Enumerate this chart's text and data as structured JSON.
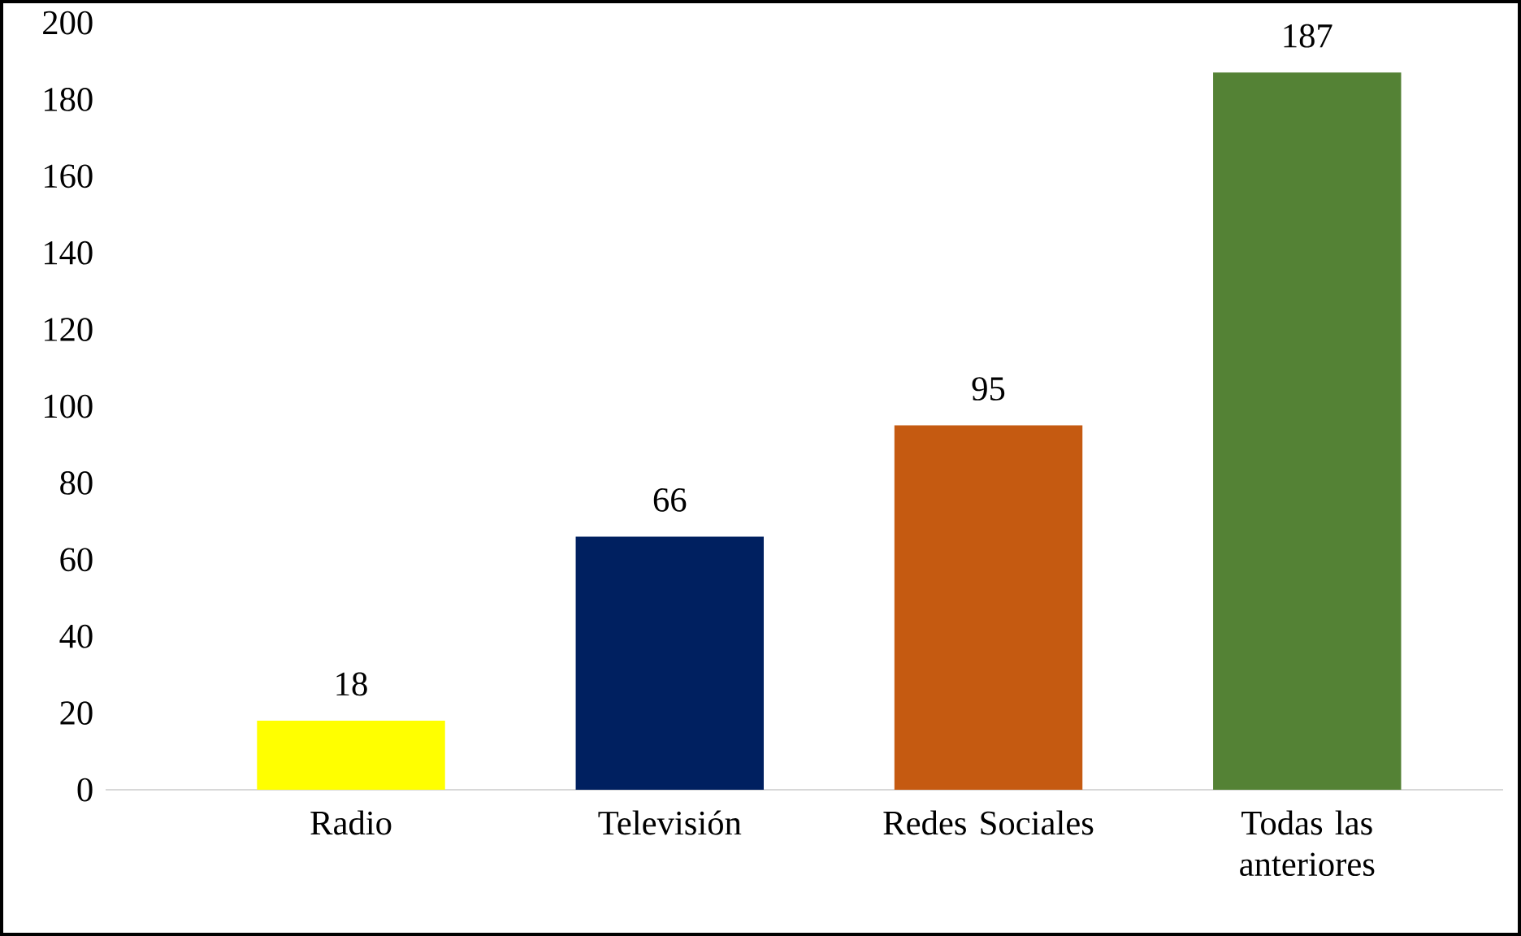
{
  "chart_data": {
    "type": "bar",
    "categories": [
      "Radio",
      "Televisión",
      "Redes Sociales",
      "Todas las anteriores"
    ],
    "values": [
      18,
      66,
      95,
      187
    ],
    "colors": [
      "#ffff00",
      "#002060",
      "#c55a11",
      "#548235"
    ],
    "ylim": [
      0,
      200
    ],
    "yticks": [
      0,
      20,
      40,
      60,
      80,
      100,
      120,
      140,
      160,
      180,
      200
    ],
    "data_labels": true
  }
}
